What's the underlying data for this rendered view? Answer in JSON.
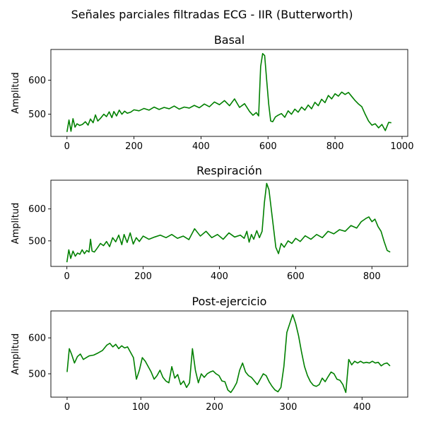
{
  "figure": {
    "suptitle": "Señales parciales filtradas ECG - IIR (Butterworth)",
    "line_color": "#008000"
  },
  "chart_data": [
    {
      "type": "line",
      "title": "Basal",
      "xlabel": "",
      "ylabel": "Amplitud",
      "xlim": [
        -48,
        1017
      ],
      "ylim": [
        435,
        690
      ],
      "xticks": [
        0,
        200,
        400,
        600,
        800,
        1000
      ],
      "yticks": [
        500,
        600
      ],
      "grid": false,
      "series": [
        {
          "x": [
            0,
            6,
            12,
            18,
            24,
            30,
            38,
            46,
            55,
            63,
            70,
            78,
            85,
            92,
            100,
            110,
            118,
            126,
            134,
            140,
            148,
            156,
            164,
            172,
            180,
            190,
            200,
            215,
            230,
            245,
            260,
            275,
            290,
            305,
            320,
            335,
            350,
            365,
            380,
            395,
            410,
            425,
            440,
            455,
            470,
            485,
            500,
            515,
            530,
            545,
            555,
            565,
            572,
            578,
            584,
            590,
            596,
            602,
            608,
            614,
            622,
            630,
            640,
            650,
            660,
            670,
            680,
            690,
            700,
            710,
            720,
            730,
            740,
            750,
            760,
            770,
            780,
            790,
            800,
            810,
            820,
            830,
            840,
            850,
            860,
            870,
            880,
            890,
            900,
            910,
            920,
            930,
            940,
            950,
            960,
            968
          ],
          "y": [
            448,
            483,
            450,
            487,
            462,
            472,
            467,
            470,
            478,
            468,
            486,
            475,
            498,
            480,
            488,
            500,
            493,
            507,
            490,
            508,
            495,
            512,
            500,
            509,
            503,
            506,
            513,
            510,
            517,
            512,
            521,
            514,
            520,
            516,
            524,
            515,
            521,
            518,
            526,
            519,
            530,
            522,
            536,
            528,
            540,
            525,
            545,
            520,
            531,
            508,
            497,
            505,
            495,
            640,
            678,
            672,
            600,
            530,
            480,
            478,
            492,
            497,
            502,
            491,
            510,
            500,
            515,
            506,
            521,
            512,
            527,
            516,
            535,
            525,
            544,
            534,
            555,
            545,
            560,
            553,
            565,
            558,
            564,
            552,
            540,
            530,
            522,
            500,
            480,
            468,
            472,
            460,
            470,
            452,
            476,
            475
          ]
        }
      ]
    },
    {
      "type": "line",
      "title": "Respiración",
      "xlabel": "",
      "ylabel": "Amplitud",
      "xlim": [
        -42,
        894
      ],
      "ylim": [
        420,
        690
      ],
      "xticks": [
        0,
        200,
        400,
        600,
        800
      ],
      "yticks": [
        500,
        600
      ],
      "grid": false,
      "series": [
        {
          "x": [
            0,
            5,
            10,
            16,
            22,
            28,
            34,
            40,
            46,
            52,
            58,
            62,
            66,
            72,
            80,
            88,
            96,
            104,
            112,
            120,
            128,
            136,
            144,
            150,
            158,
            166,
            174,
            182,
            190,
            200,
            215,
            230,
            245,
            260,
            275,
            290,
            305,
            320,
            335,
            350,
            365,
            380,
            395,
            410,
            425,
            440,
            455,
            465,
            472,
            478,
            484,
            490,
            498,
            505,
            512,
            518,
            524,
            530,
            536,
            542,
            548,
            555,
            562,
            570,
            580,
            590,
            600,
            612,
            625,
            640,
            655,
            670,
            685,
            700,
            715,
            730,
            745,
            760,
            772,
            784,
            792,
            800,
            808,
            816,
            824,
            832,
            840,
            848
          ],
          "y": [
            433,
            472,
            445,
            468,
            452,
            462,
            458,
            472,
            460,
            470,
            465,
            505,
            468,
            465,
            478,
            492,
            485,
            498,
            482,
            510,
            497,
            518,
            488,
            520,
            495,
            525,
            490,
            510,
            498,
            515,
            505,
            512,
            518,
            510,
            520,
            508,
            515,
            504,
            538,
            515,
            530,
            510,
            520,
            505,
            525,
            512,
            518,
            508,
            530,
            496,
            520,
            505,
            532,
            510,
            530,
            620,
            680,
            660,
            600,
            540,
            480,
            460,
            492,
            480,
            500,
            492,
            508,
            498,
            516,
            505,
            520,
            510,
            530,
            522,
            535,
            530,
            548,
            540,
            560,
            570,
            575,
            560,
            568,
            545,
            530,
            498,
            470,
            465
          ]
        }
      ]
    },
    {
      "type": "line",
      "title": "Post-ejercicio",
      "xlabel": "",
      "ylabel": "Amplitud",
      "xlim": [
        -22,
        462
      ],
      "ylim": [
        435,
        675
      ],
      "xticks": [
        0,
        100,
        200,
        300,
        400
      ],
      "yticks": [
        500,
        600
      ],
      "grid": false,
      "series": [
        {
          "x": [
            0,
            3,
            6,
            10,
            14,
            18,
            22,
            26,
            30,
            36,
            42,
            48,
            54,
            58,
            62,
            66,
            70,
            74,
            78,
            82,
            86,
            90,
            94,
            98,
            102,
            106,
            110,
            114,
            118,
            122,
            126,
            130,
            134,
            138,
            142,
            146,
            150,
            154,
            158,
            162,
            166,
            170,
            174,
            178,
            182,
            186,
            190,
            194,
            198,
            202,
            206,
            210,
            214,
            218,
            222,
            226,
            230,
            234,
            238,
            242,
            246,
            250,
            254,
            258,
            262,
            266,
            270,
            274,
            278,
            282,
            286,
            290,
            294,
            298,
            302,
            306,
            310,
            314,
            318,
            322,
            326,
            330,
            334,
            338,
            342,
            346,
            350,
            354,
            358,
            362,
            366,
            370,
            374,
            378,
            382,
            386,
            390,
            394,
            398,
            402,
            406,
            410,
            414,
            418,
            422,
            426,
            430,
            434,
            438
          ],
          "y": [
            505,
            570,
            555,
            530,
            548,
            555,
            540,
            545,
            550,
            552,
            558,
            565,
            580,
            585,
            575,
            582,
            570,
            578,
            572,
            575,
            560,
            545,
            485,
            510,
            545,
            535,
            520,
            505,
            485,
            495,
            510,
            490,
            480,
            475,
            520,
            488,
            498,
            470,
            480,
            462,
            475,
            570,
            510,
            475,
            500,
            490,
            500,
            505,
            508,
            500,
            495,
            480,
            478,
            455,
            448,
            460,
            475,
            510,
            530,
            505,
            495,
            490,
            480,
            470,
            485,
            500,
            495,
            478,
            465,
            455,
            450,
            462,
            520,
            615,
            640,
            665,
            640,
            605,
            560,
            520,
            495,
            478,
            468,
            465,
            470,
            488,
            478,
            492,
            505,
            500,
            485,
            482,
            470,
            448,
            540,
            525,
            535,
            530,
            535,
            530,
            532,
            530,
            535,
            530,
            532,
            522,
            528,
            530,
            522
          ]
        }
      ]
    }
  ]
}
